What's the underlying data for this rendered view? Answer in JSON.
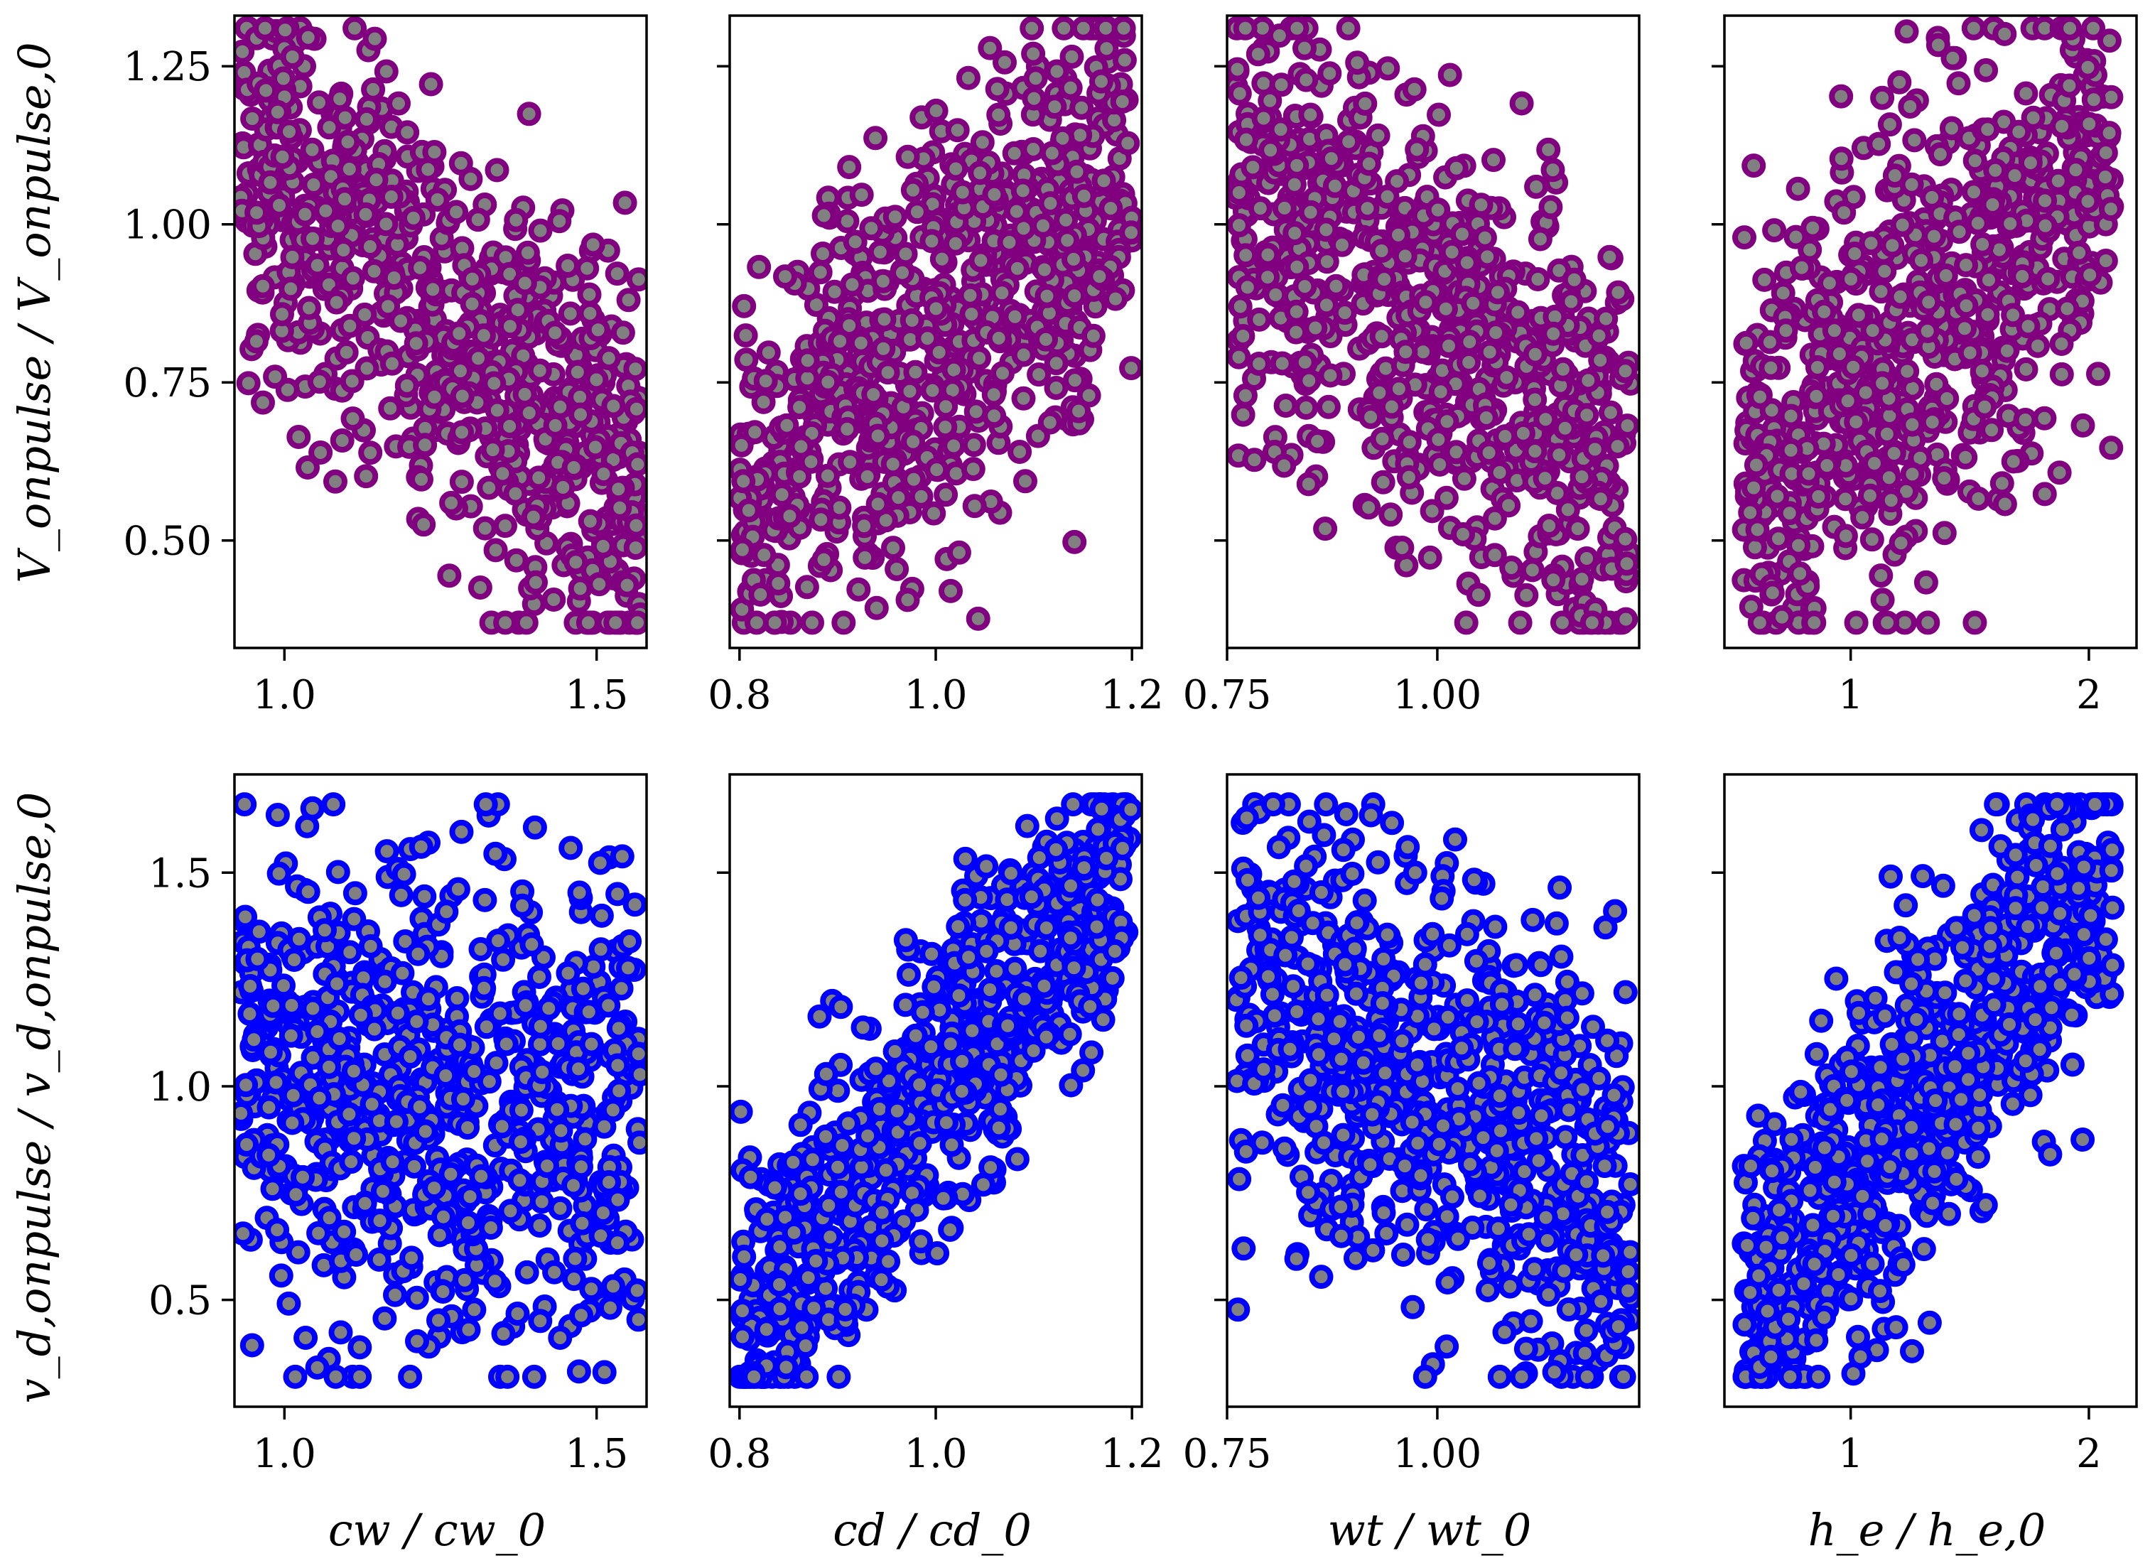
{
  "figure": {
    "title": "",
    "top_row_ylabel": "V_onpulse / V_onpulse,0",
    "bottom_row_ylabel": "v_d,onpulse / v_d,onpulse,0",
    "colors": {
      "top_marker_edge": "#800080",
      "bottom_marker_edge": "#0000ff",
      "marker_face": "#808080"
    }
  },
  "chart_data": [
    {
      "id": "top-cw",
      "type": "scatter",
      "row": "top",
      "col": 0,
      "xlabel": "",
      "ylabel": "V_onpulse / V_onpulse,0",
      "xlim": [
        0.92,
        1.58
      ],
      "ylim": [
        0.33,
        1.33
      ],
      "xticks": [
        1.0,
        1.5
      ],
      "xticklabels": [
        "1.0",
        "1.5"
      ],
      "yticks": [
        0.5,
        0.75,
        1.0,
        1.25
      ],
      "yticklabels": [
        "0.50",
        "0.75",
        "1.00",
        "1.25"
      ],
      "x_range": [
        0.93,
        1.57
      ],
      "y_range": [
        0.37,
        1.31
      ],
      "correlation": -0.55,
      "n_points": 700,
      "marker_edge": "#800080",
      "marker_face": "#808080"
    },
    {
      "id": "top-cd",
      "type": "scatter",
      "row": "top",
      "col": 1,
      "xlabel": "",
      "ylabel": "",
      "xlim": [
        0.79,
        1.21
      ],
      "ylim": [
        0.33,
        1.33
      ],
      "xticks": [
        0.8,
        1.0,
        1.2
      ],
      "xticklabels": [
        "0.8",
        "1.0",
        "1.2"
      ],
      "yticks": [
        0.5,
        0.75,
        1.0,
        1.25
      ],
      "yticklabels": [],
      "x_range": [
        0.8,
        1.2
      ],
      "y_range": [
        0.37,
        1.31
      ],
      "correlation": 0.5,
      "n_points": 700,
      "marker_edge": "#800080",
      "marker_face": "#808080"
    },
    {
      "id": "top-wt",
      "type": "scatter",
      "row": "top",
      "col": 2,
      "xlabel": "",
      "ylabel": "",
      "xlim": [
        0.75,
        1.24
      ],
      "ylim": [
        0.33,
        1.33
      ],
      "xticks": [
        0.75,
        1.0
      ],
      "xticklabels": [
        "0.75",
        "1.00"
      ],
      "yticks": [
        0.5,
        0.75,
        1.0,
        1.25
      ],
      "yticklabels": [],
      "x_range": [
        0.76,
        1.23
      ],
      "y_range": [
        0.37,
        1.31
      ],
      "correlation": -0.45,
      "n_points": 700,
      "marker_edge": "#800080",
      "marker_face": "#808080"
    },
    {
      "id": "top-he",
      "type": "scatter",
      "row": "top",
      "col": 3,
      "xlabel": "",
      "ylabel": "",
      "xlim": [
        0.47,
        2.2
      ],
      "ylim": [
        0.33,
        1.33
      ],
      "xticks": [
        1,
        2
      ],
      "xticklabels": [
        "1",
        "2"
      ],
      "yticks": [
        0.5,
        0.75,
        1.0,
        1.25
      ],
      "yticklabels": [],
      "x_range": [
        0.55,
        2.1
      ],
      "y_range": [
        0.37,
        1.31
      ],
      "correlation": 0.45,
      "n_points": 700,
      "marker_edge": "#800080",
      "marker_face": "#808080"
    },
    {
      "id": "bottom-cw",
      "type": "scatter",
      "row": "bottom",
      "col": 0,
      "xlabel": "cw / cw_0",
      "ylabel": "v_d,onpulse / v_d,onpulse,0",
      "xlim": [
        0.92,
        1.58
      ],
      "ylim": [
        0.25,
        1.73
      ],
      "xticks": [
        1.0,
        1.5
      ],
      "xticklabels": [
        "1.0",
        "1.5"
      ],
      "yticks": [
        0.5,
        1.0,
        1.5
      ],
      "yticklabels": [
        "0.5",
        "1.0",
        "1.5"
      ],
      "x_range": [
        0.93,
        1.57
      ],
      "y_range": [
        0.32,
        1.66
      ],
      "correlation": -0.1,
      "n_points": 700,
      "marker_edge": "#0000ff",
      "marker_face": "#808080"
    },
    {
      "id": "bottom-cd",
      "type": "scatter",
      "row": "bottom",
      "col": 1,
      "xlabel": "cd / cd_0",
      "ylabel": "",
      "xlim": [
        0.79,
        1.21
      ],
      "ylim": [
        0.25,
        1.73
      ],
      "xticks": [
        0.8,
        1.0,
        1.2
      ],
      "xticklabels": [
        "0.8",
        "1.0",
        "1.2"
      ],
      "yticks": [
        0.5,
        1.0,
        1.5
      ],
      "yticklabels": [],
      "x_range": [
        0.8,
        1.2
      ],
      "y_range": [
        0.32,
        1.66
      ],
      "correlation": 0.75,
      "n_points": 700,
      "marker_edge": "#0000ff",
      "marker_face": "#808080"
    },
    {
      "id": "bottom-wt",
      "type": "scatter",
      "row": "bottom",
      "col": 2,
      "xlabel": "wt / wt_0",
      "ylabel": "",
      "xlim": [
        0.75,
        1.24
      ],
      "ylim": [
        0.25,
        1.73
      ],
      "xticks": [
        0.75,
        1.0
      ],
      "xticklabels": [
        "0.75",
        "1.00"
      ],
      "yticks": [
        0.5,
        1.0,
        1.5
      ],
      "yticklabels": [],
      "x_range": [
        0.76,
        1.23
      ],
      "y_range": [
        0.32,
        1.66
      ],
      "correlation": -0.4,
      "n_points": 700,
      "marker_edge": "#0000ff",
      "marker_face": "#808080"
    },
    {
      "id": "bottom-he",
      "type": "scatter",
      "row": "bottom",
      "col": 3,
      "xlabel": "h_e / h_e,0",
      "ylabel": "",
      "xlim": [
        0.47,
        2.2
      ],
      "ylim": [
        0.25,
        1.73
      ],
      "xticks": [
        1,
        2
      ],
      "xticklabels": [
        "1",
        "2"
      ],
      "yticks": [
        0.5,
        1.0,
        1.5
      ],
      "yticklabels": [],
      "x_range": [
        0.55,
        2.1
      ],
      "y_range": [
        0.32,
        1.66
      ],
      "correlation": 0.7,
      "n_points": 700,
      "marker_edge": "#0000ff",
      "marker_face": "#808080"
    }
  ]
}
